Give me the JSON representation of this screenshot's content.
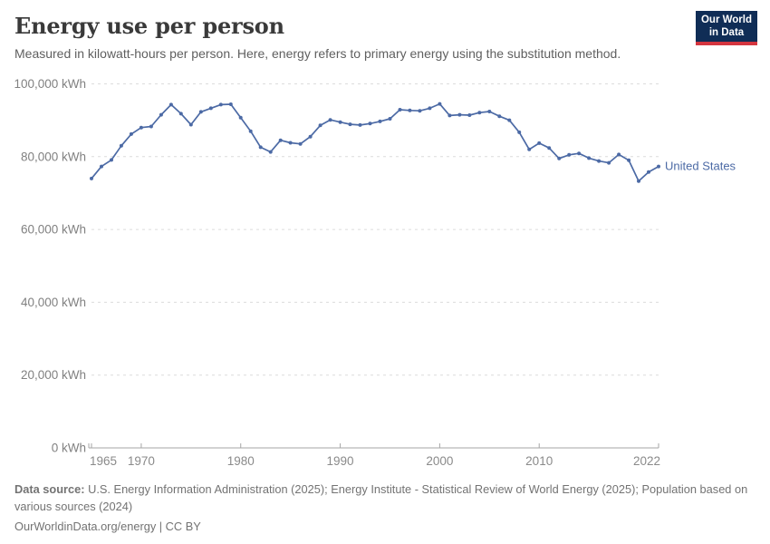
{
  "header": {
    "title": "Energy use per person",
    "subtitle": "Measured in kilowatt-hours per person. Here, energy refers to primary energy using the substitution method."
  },
  "logo": {
    "line1": "Our World",
    "line2": "in Data"
  },
  "chart_data": {
    "type": "line",
    "title": "Energy use per person",
    "unit": "kWh",
    "xlabel": "",
    "ylabel": "",
    "xlim": [
      1965,
      2022
    ],
    "ylim": [
      0,
      100000
    ],
    "grid": "horizontal-dashed",
    "legend_position": "end-of-line-label",
    "x_ticks": [
      1965,
      1970,
      1980,
      1990,
      2000,
      2010,
      2022
    ],
    "x_tick_labels": [
      "1965",
      "1970",
      "1980",
      "1990",
      "2000",
      "2010",
      "2022"
    ],
    "y_ticks": [
      0,
      20000,
      40000,
      60000,
      80000,
      100000
    ],
    "y_tick_labels": [
      "0 kWh",
      "20,000 kWh",
      "40,000 kWh",
      "60,000 kWh",
      "80,000 kWh",
      "100,000 kWh"
    ],
    "series": [
      {
        "name": "United States",
        "color": "#4c6aa5",
        "years": [
          1965,
          1966,
          1967,
          1968,
          1969,
          1970,
          1971,
          1972,
          1973,
          1974,
          1975,
          1976,
          1977,
          1978,
          1979,
          1980,
          1981,
          1982,
          1983,
          1984,
          1985,
          1986,
          1987,
          1988,
          1989,
          1990,
          1991,
          1992,
          1993,
          1994,
          1995,
          1996,
          1997,
          1998,
          1999,
          2000,
          2001,
          2002,
          2003,
          2004,
          2005,
          2006,
          2007,
          2008,
          2009,
          2010,
          2011,
          2012,
          2013,
          2014,
          2015,
          2016,
          2017,
          2018,
          2019,
          2020,
          2021,
          2022
        ],
        "values": [
          74000,
          77300,
          79100,
          83000,
          86200,
          88000,
          88300,
          91500,
          94300,
          91800,
          88800,
          92300,
          93300,
          94300,
          94400,
          90700,
          87000,
          82600,
          81300,
          84500,
          83800,
          83500,
          85500,
          88600,
          90100,
          89500,
          88900,
          88700,
          89100,
          89700,
          90400,
          92900,
          92700,
          92600,
          93300,
          94500,
          91300,
          91500,
          91400,
          92100,
          92400,
          91100,
          90000,
          86700,
          82000,
          83700,
          82400,
          79500,
          80500,
          80900,
          79600,
          78800,
          78300,
          80600,
          79000,
          73300,
          75800,
          77300
        ]
      }
    ]
  },
  "footer": {
    "datasource_label": "Data source:",
    "datasource_text": " U.S. Energy Information Administration (2025); Energy Institute - Statistical Review of World Energy (2025); Population based on various sources (2024)",
    "link_text": "OurWorldinData.org/energy | CC BY"
  }
}
